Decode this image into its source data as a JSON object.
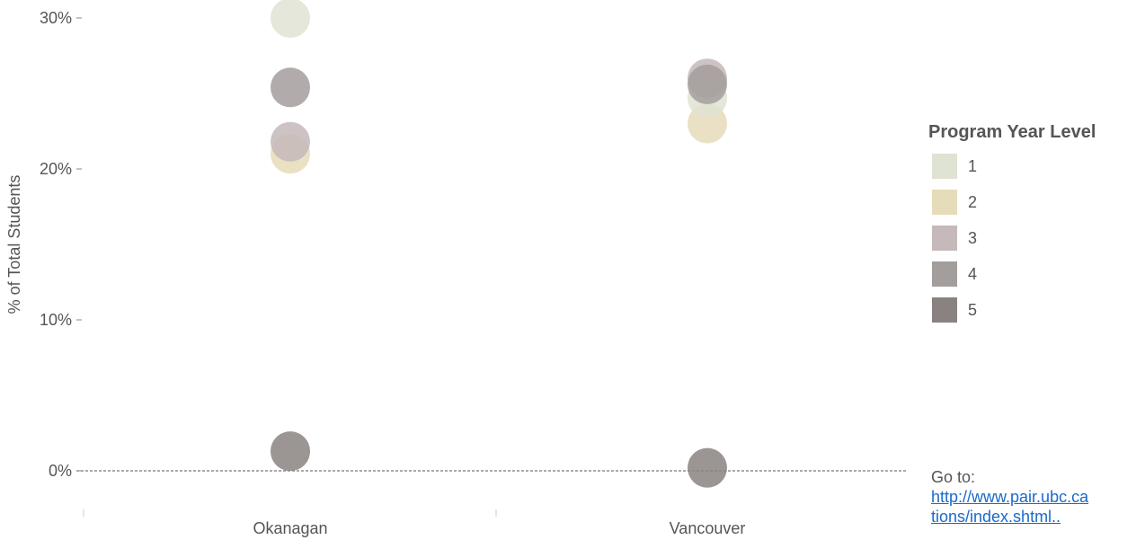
{
  "chart_data": {
    "type": "scatter",
    "title": "",
    "xlabel": "",
    "ylabel": "% of Total Students",
    "categories": [
      "Okanagan",
      "Vancouver"
    ],
    "ylim": [
      0,
      30
    ],
    "yticks": [
      0,
      10,
      20,
      30
    ],
    "ytick_labels": [
      "0%",
      "10%",
      "20%",
      "30%"
    ],
    "grid": false,
    "legend_position": "right",
    "legend_title": "Program Year Level",
    "series": [
      {
        "name": "1",
        "color": "#dfe3d2",
        "values": [
          30.0,
          24.7
        ]
      },
      {
        "name": "2",
        "color": "#e6dcba",
        "values": [
          21.0,
          23.0
        ]
      },
      {
        "name": "3",
        "color": "#c5b9ba",
        "values": [
          21.8,
          26.0
        ]
      },
      {
        "name": "4",
        "color": "#a39e9c",
        "values": [
          25.4,
          25.6
        ]
      },
      {
        "name": "5",
        "color": "#8a8280",
        "values": [
          1.3,
          0.2
        ]
      }
    ]
  },
  "footer": {
    "prefix": "Go to:",
    "link_line1": "http://www.pair.ubc.ca",
    "link_line2": "tions/index.shtml.."
  }
}
